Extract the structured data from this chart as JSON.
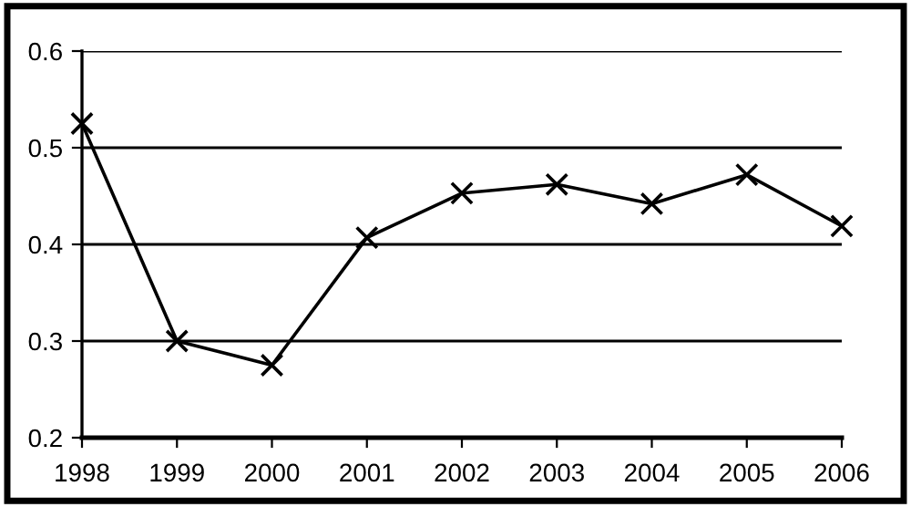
{
  "chart_data": {
    "type": "line",
    "x": [
      1998,
      1999,
      2000,
      2001,
      2002,
      2003,
      2004,
      2005,
      2006
    ],
    "series": [
      {
        "color": "#000000",
        "values": [
          0.525,
          0.3,
          0.275,
          0.407,
          0.453,
          0.462,
          0.442,
          0.472,
          0.419
        ]
      }
    ],
    "xlim": [
      1998,
      2006
    ],
    "xticks": [
      1998,
      1999,
      2000,
      2001,
      2002,
      2003,
      2004,
      2005,
      2006
    ],
    "ylim": [
      0.2,
      0.6
    ],
    "yticks": [
      0.2,
      0.3,
      0.4,
      0.5,
      0.6
    ],
    "grid": "y",
    "marker": "cross",
    "line_style": "solid"
  }
}
